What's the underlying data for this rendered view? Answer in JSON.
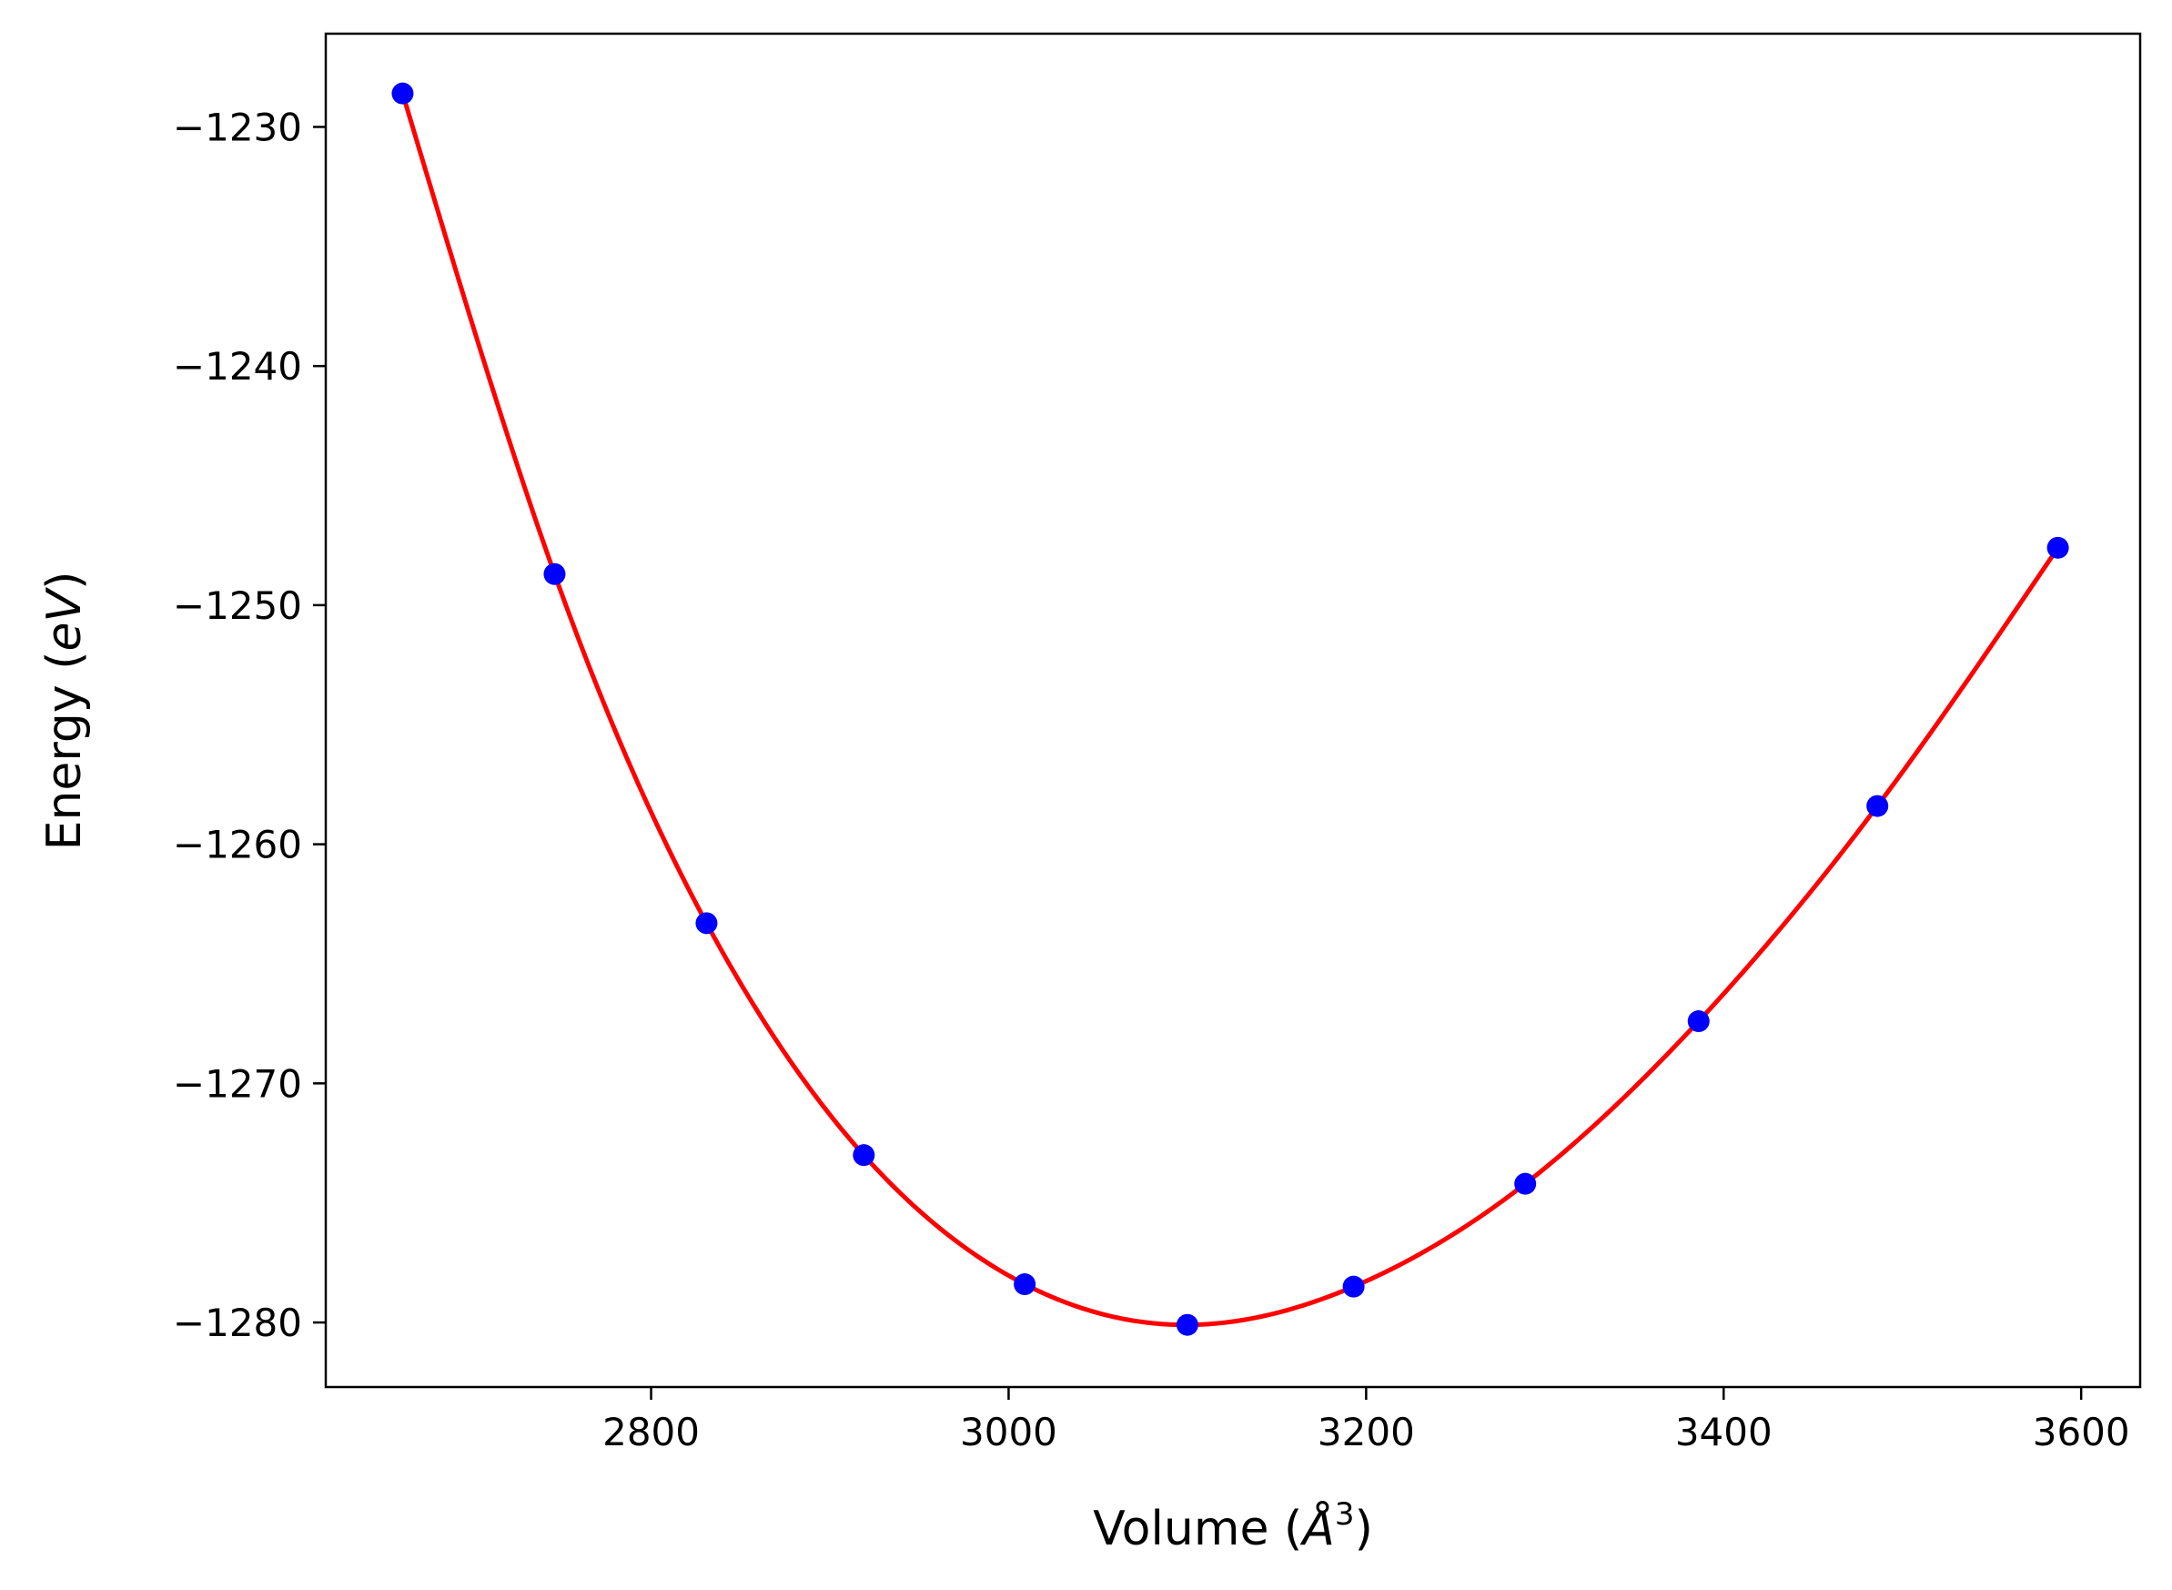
{
  "chart_data": {
    "type": "line",
    "xlabel": "Volume (Å³)",
    "xlabel_parts": {
      "prefix": "Volume (",
      "symbol": "Å",
      "exponent": "3",
      "suffix": ")"
    },
    "ylabel": "Energy (eV)",
    "ylabel_parts": {
      "prefix": "Energy (",
      "symbol": "eV",
      "suffix": ")"
    },
    "xlim": [
      2618,
      3633
    ],
    "ylim": [
      -1282.7,
      -1226.1
    ],
    "xticks": [
      2800,
      3000,
      3200,
      3400,
      3600
    ],
    "xtick_labels": [
      "2800",
      "3000",
      "3200",
      "3400",
      "3600"
    ],
    "yticks": [
      -1230,
      -1240,
      -1250,
      -1260,
      -1270,
      -1280
    ],
    "ytick_labels": [
      "−1230",
      "−1240",
      "−1250",
      "−1260",
      "−1270",
      "−1280"
    ],
    "grid": false,
    "series": [
      {
        "kind": "scatter",
        "color": "#0000ff",
        "x": [
          2661,
          2746,
          2831,
          2919,
          3009,
          3100,
          3193,
          3289,
          3386,
          3486,
          3587
        ],
        "y": [
          -1228.6,
          -1248.7,
          -1263.3,
          -1273.0,
          -1278.4,
          -1280.1,
          -1278.5,
          -1274.2,
          -1267.4,
          -1258.4,
          -1247.6
        ]
      },
      {
        "kind": "fit-curve",
        "color": "#ff0000",
        "x": [
          2661,
          2746,
          2831,
          2919,
          3009,
          3100,
          3193,
          3289,
          3386,
          3486,
          3587
        ],
        "y": [
          -1228.6,
          -1248.7,
          -1263.3,
          -1273.0,
          -1278.4,
          -1280.1,
          -1278.5,
          -1274.2,
          -1267.4,
          -1258.4,
          -1247.6
        ]
      }
    ]
  }
}
